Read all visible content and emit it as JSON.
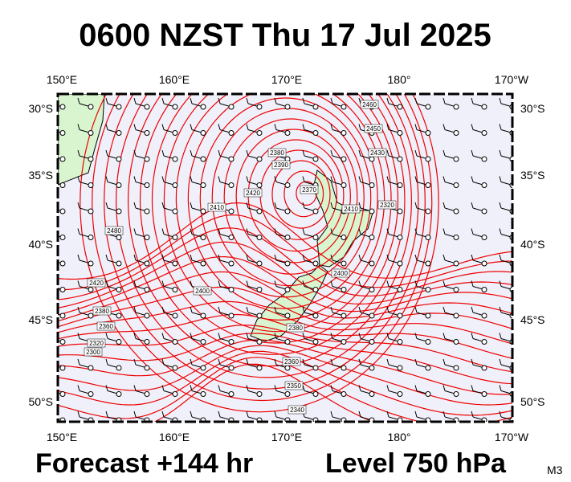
{
  "header": {
    "title": "0600 NZST Thu 17 Jul 2025"
  },
  "axes": {
    "top": [
      "150°E",
      "160°E",
      "170°E",
      "180°",
      "170°W"
    ],
    "bottom": [
      "150°E",
      "160°E",
      "170°E",
      "180°",
      "170°W"
    ],
    "left": [
      "30°S",
      "35°S",
      "40°S",
      "45°S",
      "50°S"
    ],
    "right": [
      "30°S",
      "35°S",
      "40°S",
      "45°S",
      "50°S"
    ]
  },
  "contour_labels": [
    "2480",
    "2420",
    "2380",
    "2360",
    "2320",
    "2300",
    "2400",
    "2410",
    "2420",
    "2380",
    "2370",
    "2390",
    "2430",
    "2450",
    "2460",
    "2410",
    "2400",
    "2380",
    "2360",
    "2350",
    "2340",
    "2320"
  ],
  "footer": {
    "forecast": "Forecast +144 hr",
    "level": "Level 750 hPa",
    "model": "M3"
  }
}
